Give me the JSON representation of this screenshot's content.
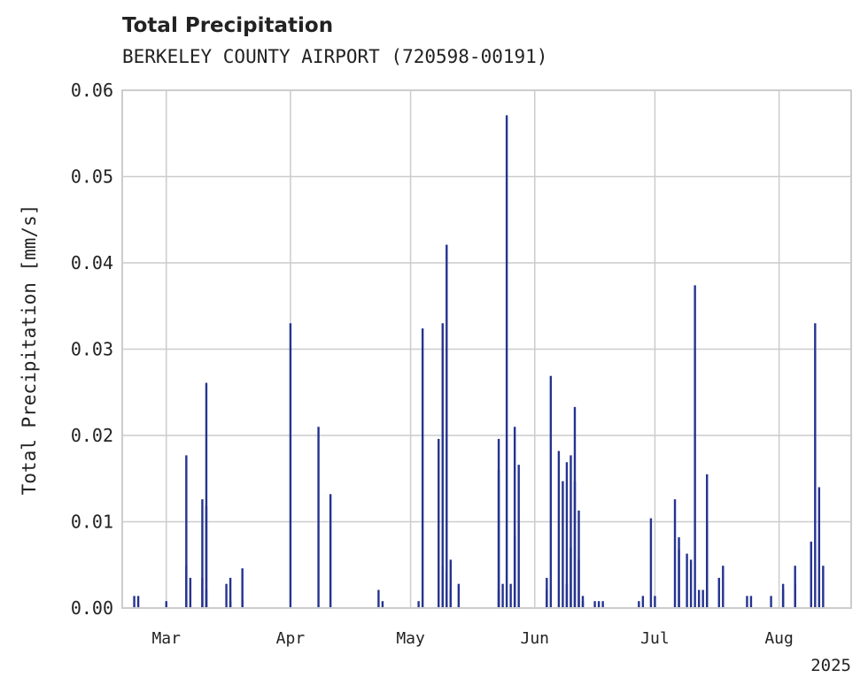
{
  "chart_data": {
    "type": "bar",
    "title": "Total Precipitation",
    "subtitle": "BERKELEY COUNTY AIRPORT (720598-00191)",
    "ylabel": "Total Precipitation [mm/s]",
    "xlabel": "",
    "year_label": "2025",
    "ylim": [
      0,
      0.06
    ],
    "yticks": [
      "0.00",
      "0.01",
      "0.02",
      "0.03",
      "0.04",
      "0.05",
      "0.06"
    ],
    "xticks": [
      {
        "label": "Mar",
        "date": "2025-03-01"
      },
      {
        "label": "Apr",
        "date": "2025-04-01"
      },
      {
        "label": "May",
        "date": "2025-05-01"
      },
      {
        "label": "Jun",
        "date": "2025-06-01"
      },
      {
        "label": "Jul",
        "date": "2025-07-01"
      },
      {
        "label": "Aug",
        "date": "2025-08-01"
      }
    ],
    "xlim": [
      "2025-02-18",
      "2025-08-19"
    ],
    "grid": true,
    "color": "#25338f",
    "series": [
      {
        "points": [
          [
            "2025-02-21",
            0.0014
          ],
          [
            "2025-02-22",
            0.0014
          ],
          [
            "2025-02-29",
            0.0008
          ],
          [
            "2025-03-06",
            0.0049
          ],
          [
            "2025-03-06",
            0.0177
          ],
          [
            "2025-03-07",
            0.0035
          ],
          [
            "2025-03-10",
            0.0035
          ],
          [
            "2025-03-10",
            0.0126
          ],
          [
            "2025-03-11",
            0.0261
          ],
          [
            "2025-03-11",
            0.0118
          ],
          [
            "2025-03-11",
            0.0021
          ],
          [
            "2025-03-16",
            0.0028
          ],
          [
            "2025-03-17",
            0.0035
          ],
          [
            "2025-03-17",
            0.0008
          ],
          [
            "2025-03-20",
            0.0046
          ],
          [
            "2025-03-20",
            0.0009
          ],
          [
            "2025-04-01",
            0.033
          ],
          [
            "2025-04-08",
            0.021
          ],
          [
            "2025-04-11",
            0.0132
          ],
          [
            "2025-04-23",
            0.0021
          ],
          [
            "2025-04-24",
            0.0008
          ],
          [
            "2025-05-03",
            0.0008
          ],
          [
            "2025-05-04",
            0.0324
          ],
          [
            "2025-05-08",
            0.0196
          ],
          [
            "2025-05-09",
            0.033
          ],
          [
            "2025-05-09",
            0.0049
          ],
          [
            "2025-05-09",
            0.0014
          ],
          [
            "2025-05-10",
            0.0042
          ],
          [
            "2025-05-10",
            0.0421
          ],
          [
            "2025-05-11",
            0.0021
          ],
          [
            "2025-05-11",
            0.0056
          ],
          [
            "2025-05-13",
            0.0028
          ],
          [
            "2025-05-23",
            0.0021
          ],
          [
            "2025-05-23",
            0.016
          ],
          [
            "2025-05-23",
            0.0196
          ],
          [
            "2025-05-24",
            0.0028
          ],
          [
            "2025-05-25",
            0.0571
          ],
          [
            "2025-05-26",
            0.0028
          ],
          [
            "2025-05-27",
            0.021
          ],
          [
            "2025-05-27",
            0.0084
          ],
          [
            "2025-05-28",
            0.0166
          ],
          [
            "2025-06-04",
            0.0035
          ],
          [
            "2025-06-04",
            0.0021
          ],
          [
            "2025-06-05",
            0.0269
          ],
          [
            "2025-06-07",
            0.0182
          ],
          [
            "2025-06-08",
            0.0147
          ],
          [
            "2025-06-09",
            0.0169
          ],
          [
            "2025-06-09",
            0.0028
          ],
          [
            "2025-06-10",
            0.0177
          ],
          [
            "2025-06-10",
            0.007
          ],
          [
            "2025-06-11",
            0.0233
          ],
          [
            "2025-06-11",
            0.0147
          ],
          [
            "2025-06-12",
            0.0113
          ],
          [
            "2025-06-12",
            0.0056
          ],
          [
            "2025-06-13",
            0.0014
          ],
          [
            "2025-06-13",
            0.0008
          ],
          [
            "2025-06-16",
            0.0008
          ],
          [
            "2025-06-17",
            0.0008
          ],
          [
            "2025-06-18",
            0.0008
          ],
          [
            "2025-06-27",
            0.0008
          ],
          [
            "2025-06-28",
            0.0014
          ],
          [
            "2025-06-30",
            0.0104
          ],
          [
            "2025-07-01",
            0.0014
          ],
          [
            "2025-07-06",
            0.0126
          ],
          [
            "2025-07-07",
            0.0082
          ],
          [
            "2025-07-07",
            0.0068
          ],
          [
            "2025-07-09",
            0.0063
          ],
          [
            "2025-07-10",
            0.0056
          ],
          [
            "2025-07-11",
            0.0374
          ],
          [
            "2025-07-12",
            0.0021
          ],
          [
            "2025-07-13",
            0.0021
          ],
          [
            "2025-07-14",
            0.0155
          ],
          [
            "2025-07-14",
            0.0098
          ],
          [
            "2025-07-17",
            0.0035
          ],
          [
            "2025-07-18",
            0.0049
          ],
          [
            "2025-07-24",
            0.0014
          ],
          [
            "2025-07-25",
            0.0014
          ],
          [
            "2025-07-30",
            0.0014
          ],
          [
            "2025-08-02",
            0.0021
          ],
          [
            "2025-08-02",
            0.0028
          ],
          [
            "2025-08-05",
            0.0028
          ],
          [
            "2025-08-05",
            0.0049
          ],
          [
            "2025-08-09",
            0.0077
          ],
          [
            "2025-08-10",
            0.033
          ],
          [
            "2025-08-11",
            0.014
          ],
          [
            "2025-08-12",
            0.0049
          ]
        ]
      }
    ]
  }
}
